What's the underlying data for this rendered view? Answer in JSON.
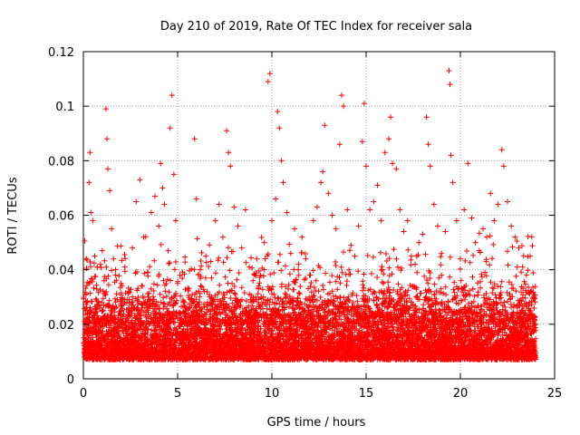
{
  "chart_data": {
    "type": "scatter",
    "title": "Day 210 of 2019, Rate Of TEC Index for receiver sala",
    "xlabel": "GPS time / hours",
    "ylabel": "ROTI / TECUs",
    "xlim": [
      0,
      25
    ],
    "ylim": [
      0,
      0.12
    ],
    "xticks": [
      0,
      5,
      10,
      15,
      20,
      25
    ],
    "xtick_labels": [
      "0",
      "5",
      "10",
      "15",
      "20",
      "25"
    ],
    "yticks": [
      0,
      0.02,
      0.04,
      0.06,
      0.08,
      0.1,
      0.12
    ],
    "ytick_labels": [
      "0",
      "0.02",
      "0.04",
      "0.06",
      "0.08",
      "0.1",
      "0.12"
    ],
    "grid": true,
    "marker": "plus",
    "color": "#ff0000",
    "series": [
      {
        "points": [
          [
            0.1,
            0.012
          ],
          [
            0.2,
            0.025
          ],
          [
            0.3,
            0.072
          ],
          [
            0.35,
            0.083
          ],
          [
            0.4,
            0.061
          ],
          [
            0.5,
            0.058
          ],
          [
            0.6,
            0.045
          ],
          [
            0.7,
            0.033
          ],
          [
            0.8,
            0.028
          ],
          [
            0.9,
            0.042
          ],
          [
            1.0,
            0.047
          ],
          [
            1.1,
            0.036
          ],
          [
            1.2,
            0.099
          ],
          [
            1.25,
            0.088
          ],
          [
            1.3,
            0.077
          ],
          [
            1.4,
            0.069
          ],
          [
            1.5,
            0.055
          ],
          [
            1.6,
            0.044
          ],
          [
            1.7,
            0.038
          ],
          [
            1.8,
            0.029
          ],
          [
            2.0,
            0.035
          ],
          [
            2.2,
            0.041
          ],
          [
            2.4,
            0.032
          ],
          [
            2.6,
            0.048
          ],
          [
            2.8,
            0.065
          ],
          [
            3.0,
            0.073
          ],
          [
            3.2,
            0.052
          ],
          [
            3.4,
            0.039
          ],
          [
            3.6,
            0.061
          ],
          [
            3.8,
            0.067
          ],
          [
            4.0,
            0.056
          ],
          [
            4.1,
            0.079
          ],
          [
            4.2,
            0.07
          ],
          [
            4.3,
            0.064
          ],
          [
            4.5,
            0.047
          ],
          [
            4.6,
            0.092
          ],
          [
            4.7,
            0.104
          ],
          [
            4.8,
            0.075
          ],
          [
            4.9,
            0.058
          ],
          [
            5.0,
            0.035
          ],
          [
            5.3,
            0.028
          ],
          [
            5.6,
            0.033
          ],
          [
            5.9,
            0.088
          ],
          [
            6.0,
            0.066
          ],
          [
            6.2,
            0.04
          ],
          [
            6.5,
            0.045
          ],
          [
            6.8,
            0.037
          ],
          [
            7.0,
            0.058
          ],
          [
            7.2,
            0.064
          ],
          [
            7.4,
            0.052
          ],
          [
            7.6,
            0.091
          ],
          [
            7.7,
            0.083
          ],
          [
            7.8,
            0.078
          ],
          [
            8.0,
            0.063
          ],
          [
            8.2,
            0.056
          ],
          [
            8.4,
            0.048
          ],
          [
            8.6,
            0.062
          ],
          [
            8.8,
            0.041
          ],
          [
            9.0,
            0.036
          ],
          [
            9.2,
            0.044
          ],
          [
            9.4,
            0.038
          ],
          [
            9.6,
            0.05
          ],
          [
            9.8,
            0.109
          ],
          [
            9.9,
            0.112
          ],
          [
            10.0,
            0.058
          ],
          [
            10.2,
            0.066
          ],
          [
            10.3,
            0.098
          ],
          [
            10.4,
            0.092
          ],
          [
            10.5,
            0.08
          ],
          [
            10.6,
            0.072
          ],
          [
            10.8,
            0.061
          ],
          [
            11.0,
            0.046
          ],
          [
            11.2,
            0.055
          ],
          [
            11.4,
            0.04
          ],
          [
            11.6,
            0.052
          ],
          [
            11.8,
            0.044
          ],
          [
            12.0,
            0.038
          ],
          [
            12.2,
            0.058
          ],
          [
            12.4,
            0.063
          ],
          [
            12.6,
            0.072
          ],
          [
            12.7,
            0.076
          ],
          [
            12.8,
            0.093
          ],
          [
            13.0,
            0.068
          ],
          [
            13.2,
            0.06
          ],
          [
            13.4,
            0.055
          ],
          [
            13.6,
            0.086
          ],
          [
            13.7,
            0.104
          ],
          [
            13.8,
            0.1
          ],
          [
            14.0,
            0.062
          ],
          [
            14.2,
            0.049
          ],
          [
            14.4,
            0.045
          ],
          [
            14.6,
            0.056
          ],
          [
            14.8,
            0.087
          ],
          [
            14.9,
            0.101
          ],
          [
            15.0,
            0.078
          ],
          [
            15.2,
            0.062
          ],
          [
            15.4,
            0.065
          ],
          [
            15.6,
            0.071
          ],
          [
            15.8,
            0.058
          ],
          [
            16.0,
            0.083
          ],
          [
            16.2,
            0.088
          ],
          [
            16.3,
            0.096
          ],
          [
            16.4,
            0.079
          ],
          [
            16.6,
            0.077
          ],
          [
            16.8,
            0.062
          ],
          [
            17.0,
            0.054
          ],
          [
            17.2,
            0.058
          ],
          [
            17.4,
            0.045
          ],
          [
            17.6,
            0.042
          ],
          [
            17.8,
            0.05
          ],
          [
            18.0,
            0.053
          ],
          [
            18.2,
            0.096
          ],
          [
            18.3,
            0.086
          ],
          [
            18.4,
            0.078
          ],
          [
            18.6,
            0.064
          ],
          [
            18.8,
            0.056
          ],
          [
            19.0,
            0.046
          ],
          [
            19.2,
            0.054
          ],
          [
            19.4,
            0.113
          ],
          [
            19.45,
            0.108
          ],
          [
            19.5,
            0.082
          ],
          [
            19.6,
            0.072
          ],
          [
            19.8,
            0.058
          ],
          [
            20.0,
            0.044
          ],
          [
            20.2,
            0.062
          ],
          [
            20.4,
            0.079
          ],
          [
            20.6,
            0.059
          ],
          [
            20.8,
            0.05
          ],
          [
            21.0,
            0.047
          ],
          [
            21.2,
            0.055
          ],
          [
            21.4,
            0.052
          ],
          [
            21.6,
            0.068
          ],
          [
            21.8,
            0.058
          ],
          [
            22.0,
            0.064
          ],
          [
            22.2,
            0.084
          ],
          [
            22.3,
            0.078
          ],
          [
            22.5,
            0.065
          ],
          [
            22.7,
            0.056
          ],
          [
            22.9,
            0.052
          ],
          [
            23.1,
            0.048
          ],
          [
            23.3,
            0.041
          ],
          [
            23.5,
            0.038
          ],
          [
            23.7,
            0.045
          ],
          [
            23.9,
            0.03
          ]
        ]
      }
    ]
  }
}
